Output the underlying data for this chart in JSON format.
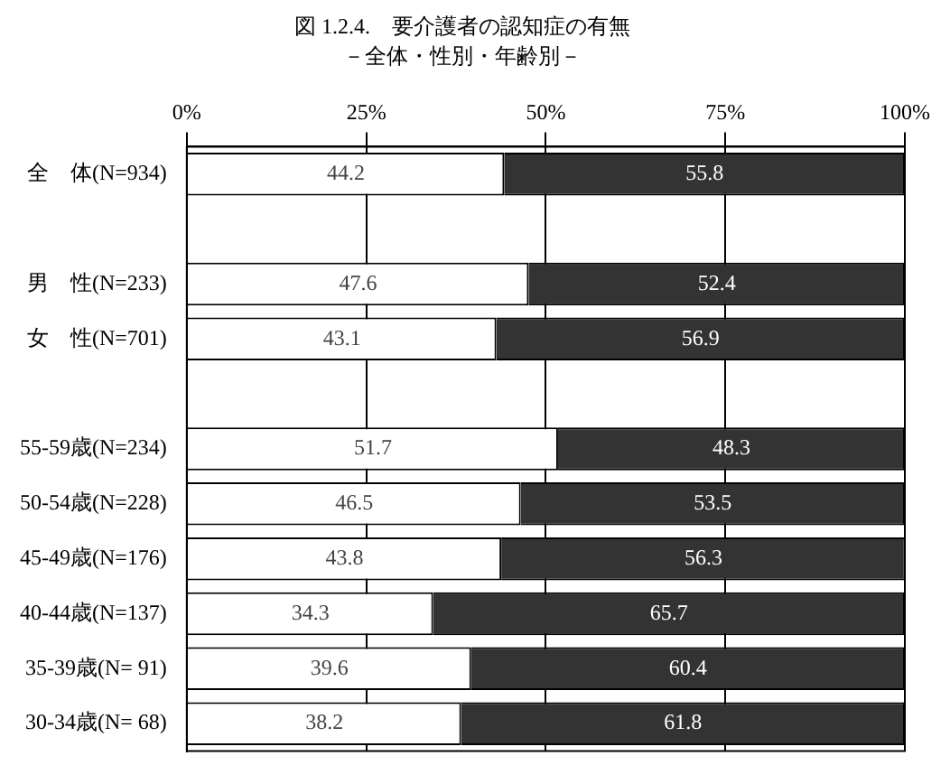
{
  "chart_data": {
    "type": "bar",
    "orientation": "horizontal",
    "stacked": true,
    "title": "図 1.2.4.　要介護者の認知症の有無",
    "subtitle": "－全体・性別・年齢別－",
    "categories": [
      "全　体(N=934)",
      null,
      "男　性(N=233)",
      "女　性(N=701)",
      null,
      "55-59歳(N=234)",
      "50-54歳(N=228)",
      "45-49歳(N=176)",
      "40-44歳(N=137)",
      "35-39歳(N= 91)",
      "30-34歳(N= 68)"
    ],
    "series": [
      {
        "color": "#ffffff",
        "values": [
          44.2,
          null,
          47.6,
          43.1,
          null,
          51.7,
          46.5,
          43.8,
          34.3,
          39.6,
          38.2
        ]
      },
      {
        "color": "#333333",
        "values": [
          55.8,
          null,
          52.4,
          56.9,
          null,
          48.3,
          53.5,
          56.3,
          65.7,
          60.4,
          61.8
        ]
      }
    ],
    "xlim": [
      0,
      100
    ],
    "xticks": [
      {
        "value": 0,
        "label": "0%"
      },
      {
        "value": 25,
        "label": "25%"
      },
      {
        "value": 50,
        "label": "50%"
      },
      {
        "value": 75,
        "label": "75%"
      },
      {
        "value": 100,
        "label": "100%"
      }
    ],
    "grid": "x",
    "legend": false,
    "data_labels": true
  }
}
